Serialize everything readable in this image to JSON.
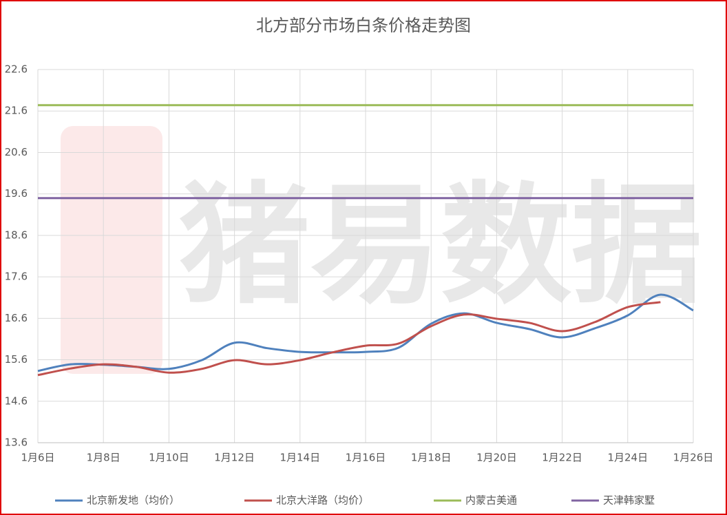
{
  "chart_data": {
    "type": "line",
    "title": "北方部分市场白条价格走势图",
    "watermark": "猪易数据",
    "categories": [
      "1月6日",
      null,
      "1月8日",
      null,
      "1月10日",
      null,
      "1月12日",
      null,
      "1月14日",
      null,
      "1月16日",
      null,
      "1月18日",
      null,
      "1月20日",
      null,
      "1月22日",
      null,
      "1月24日",
      null,
      "1月26日"
    ],
    "series": [
      {
        "name": "北京新发地（均价）",
        "color": "#4f81bd",
        "values": [
          15.33,
          15.49,
          15.48,
          15.43,
          15.38,
          15.59,
          16.01,
          15.88,
          15.79,
          15.78,
          15.79,
          15.89,
          16.47,
          16.72,
          16.49,
          16.34,
          16.14,
          16.36,
          16.67,
          17.17,
          16.79
        ]
      },
      {
        "name": "北京大洋路（均价）",
        "color": "#c0504d",
        "values": [
          15.23,
          15.39,
          15.49,
          15.43,
          15.29,
          15.38,
          15.59,
          15.49,
          15.59,
          15.78,
          15.94,
          15.99,
          16.41,
          16.69,
          16.59,
          16.49,
          16.29,
          16.51,
          16.87,
          16.99,
          null
        ]
      },
      {
        "name": "内蒙古美通",
        "color": "#9bbb59",
        "values": [
          21.74,
          21.74,
          21.74,
          21.74,
          21.74,
          21.74,
          21.74,
          21.74,
          21.74,
          21.74,
          21.74,
          21.74,
          21.74,
          21.74,
          21.74,
          21.74,
          21.74,
          21.74,
          21.74,
          21.74,
          21.74
        ]
      },
      {
        "name": "天津韩家墅",
        "color": "#8064a2",
        "values": [
          19.5,
          19.5,
          19.5,
          19.5,
          19.5,
          19.5,
          19.5,
          19.5,
          19.5,
          19.5,
          19.5,
          19.5,
          19.5,
          19.5,
          19.5,
          19.5,
          19.5,
          19.5,
          19.5,
          19.5,
          19.5
        ]
      }
    ],
    "ylim": [
      13.6,
      22.6
    ],
    "yticks": [
      13.6,
      14.6,
      15.6,
      16.6,
      17.6,
      18.6,
      19.6,
      20.6,
      21.6,
      22.6
    ],
    "grid": true,
    "smooth": true,
    "legend": "bottom"
  }
}
